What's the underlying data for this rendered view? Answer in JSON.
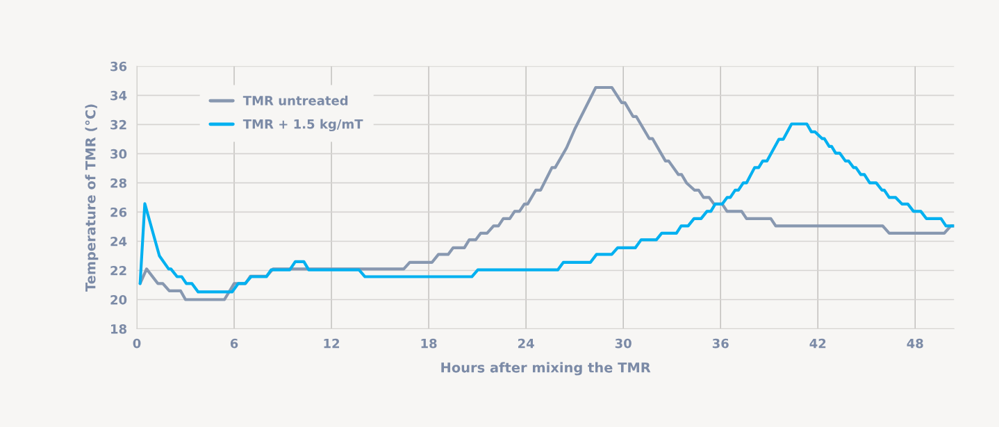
{
  "chart_data": {
    "type": "line",
    "xlabel": "Hours after mixing the TMR",
    "ylabel": "Temperature of TMR (°C)",
    "xlim": [
      0,
      50.4
    ],
    "xticks": [
      0,
      6,
      12,
      18,
      24,
      30,
      36,
      42,
      48
    ],
    "ylim": [
      18,
      36
    ],
    "yticks": [
      18,
      20,
      22,
      24,
      26,
      28,
      30,
      32,
      34,
      36
    ],
    "grid": true,
    "legend": "top left",
    "line_style": "solid",
    "marker": "none",
    "series": [
      {
        "name": "TMR untreated",
        "color": "#8898b0",
        "x": [
          0.2,
          0.6,
          1.3,
          1.6,
          2.0,
          2.7,
          3.0,
          5.4,
          6.0,
          6.7,
          7.0,
          8.0,
          8.4,
          16.46,
          16.83,
          18.2,
          18.6,
          19.2,
          19.5,
          20.2,
          20.5,
          20.9,
          21.2,
          21.6,
          22.0,
          22.3,
          22.6,
          23.0,
          23.3,
          23.6,
          23.9,
          24.1,
          24.6,
          24.9,
          25.6,
          25.8,
          26.5,
          27.0,
          28.3,
          29.3,
          29.9,
          30.1,
          30.6,
          30.8,
          31.6,
          31.8,
          32.6,
          32.8,
          33.4,
          33.6,
          33.9,
          34.4,
          34.65,
          34.95,
          35.3,
          35.6,
          36.1,
          36.4,
          37.3,
          37.6,
          39.1,
          39.4,
          46.0,
          46.4,
          49.8,
          50.2,
          50.4
        ],
        "values": [
          21.1,
          22.1,
          21.1,
          21.1,
          20.6,
          20.6,
          20.0,
          20.0,
          21.1,
          21.1,
          21.6,
          21.6,
          22.1,
          22.1,
          22.55,
          22.55,
          23.1,
          23.1,
          23.55,
          23.55,
          24.1,
          24.1,
          24.55,
          24.55,
          25.05,
          25.05,
          25.55,
          25.55,
          26.05,
          26.05,
          26.55,
          26.55,
          27.5,
          27.5,
          29.05,
          29.05,
          30.4,
          31.67,
          34.54,
          34.54,
          33.5,
          33.5,
          32.55,
          32.55,
          31.04,
          31.04,
          29.5,
          29.5,
          28.57,
          28.57,
          28.0,
          27.5,
          27.5,
          27.0,
          27.0,
          26.55,
          26.55,
          26.05,
          26.05,
          25.55,
          25.55,
          25.05,
          25.05,
          24.55,
          24.55,
          25.05,
          25.05
        ]
      },
      {
        "name": "TMR + 1.5 kg/mT",
        "color": "#00b0f0",
        "x": [
          0.2,
          0.49,
          1.39,
          1.96,
          2.1,
          2.48,
          2.77,
          3.05,
          3.4,
          3.78,
          5.87,
          6.25,
          6.68,
          7.04,
          7.99,
          8.28,
          9.43,
          9.77,
          10.3,
          10.6,
          13.7,
          14.07,
          20.66,
          21.03,
          25.96,
          26.3,
          27.97,
          28.35,
          29.29,
          29.65,
          30.74,
          31.1,
          32.04,
          32.37,
          33.28,
          33.57,
          34.0,
          34.36,
          34.8,
          35.16,
          35.4,
          35.67,
          36.1,
          36.4,
          36.6,
          36.9,
          37.1,
          37.4,
          37.6,
          38.1,
          38.35,
          38.6,
          38.86,
          39.6,
          39.87,
          40.38,
          41.32,
          41.6,
          41.83,
          42.26,
          42.4,
          42.7,
          42.85,
          43.1,
          43.35,
          43.7,
          43.9,
          44.2,
          44.35,
          44.65,
          44.87,
          45.2,
          45.6,
          45.96,
          46.1,
          46.4,
          46.8,
          47.19,
          47.55,
          47.9,
          48.35,
          48.7,
          49.6,
          49.9,
          50.4
        ],
        "values": [
          21.1,
          26.58,
          23.0,
          22.1,
          22.1,
          21.57,
          21.57,
          21.1,
          21.1,
          20.53,
          20.53,
          21.1,
          21.1,
          21.57,
          21.57,
          22.04,
          22.04,
          22.6,
          22.6,
          22.04,
          22.04,
          21.57,
          21.57,
          22.04,
          22.04,
          22.55,
          22.55,
          23.1,
          23.1,
          23.55,
          23.55,
          24.1,
          24.1,
          24.55,
          24.55,
          25.05,
          25.05,
          25.55,
          25.55,
          26.05,
          26.05,
          26.55,
          26.55,
          27.0,
          27.0,
          27.5,
          27.5,
          28.0,
          28.0,
          29.05,
          29.05,
          29.5,
          29.5,
          30.99,
          30.99,
          32.04,
          32.04,
          31.5,
          31.5,
          31.04,
          31.04,
          30.5,
          30.5,
          30.04,
          30.04,
          29.5,
          29.5,
          29.05,
          29.05,
          28.57,
          28.57,
          28.0,
          28.0,
          27.5,
          27.5,
          27.0,
          27.0,
          26.55,
          26.55,
          26.05,
          26.05,
          25.55,
          25.55,
          25.05,
          25.05
        ]
      }
    ]
  }
}
